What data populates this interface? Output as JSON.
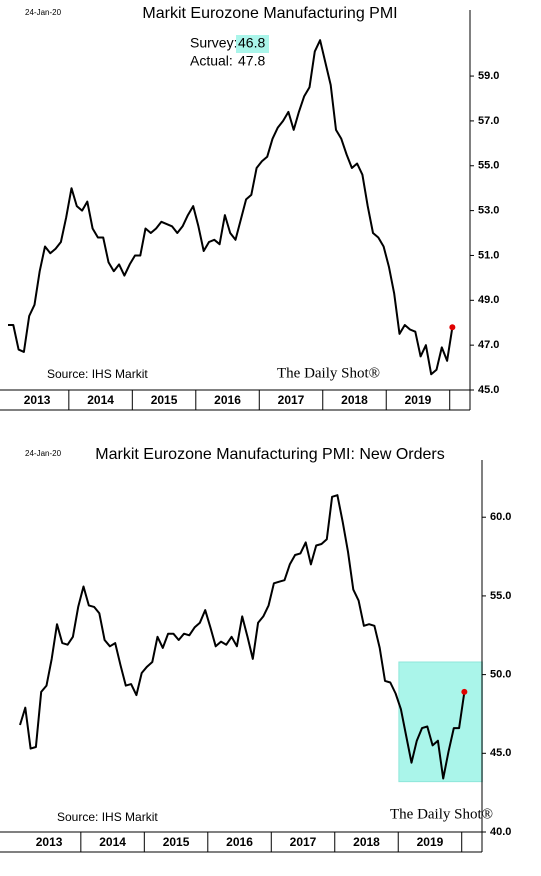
{
  "chart_data": [
    {
      "type": "line",
      "date": "24-Jan-20",
      "title": "Markit Eurozone Manufacturing PMI",
      "survey_label": "Survey:",
      "survey": 46.8,
      "actual_label": "Actual:",
      "actual": 47.8,
      "source": "Source: IHS Markit",
      "brand": "The Daily Shot®",
      "categories": [
        null,
        null,
        null,
        null,
        null,
        null,
        "2013",
        null,
        null,
        null,
        null,
        null,
        null,
        null,
        null,
        null,
        null,
        null,
        "2014",
        null,
        null,
        null,
        null,
        null,
        null,
        null,
        null,
        null,
        null,
        null,
        "2015",
        null,
        null,
        null,
        null,
        null,
        null,
        null,
        null,
        null,
        null,
        null,
        "2016",
        null,
        null,
        null,
        null,
        null,
        null,
        null,
        null,
        null,
        null,
        null,
        "2017",
        null,
        null,
        null,
        null,
        null,
        null,
        null,
        null,
        null,
        null,
        null,
        "2018",
        null,
        null,
        null,
        null,
        null,
        null,
        null,
        null,
        null,
        null,
        null,
        "2019",
        null,
        null,
        null,
        null,
        null,
        null
      ],
      "series": [
        {
          "color": "#000000",
          "values": [
            47.9,
            47.9,
            46.8,
            46.7,
            48.3,
            48.8,
            50.3,
            51.4,
            51.1,
            51.3,
            51.6,
            52.7,
            54.0,
            53.2,
            53.0,
            53.4,
            52.2,
            51.8,
            51.8,
            50.7,
            50.3,
            50.6,
            50.1,
            50.6,
            51.0,
            51.0,
            52.2,
            52.0,
            52.2,
            52.5,
            52.4,
            52.3,
            52.0,
            52.3,
            52.8,
            53.2,
            52.3,
            51.2,
            51.6,
            51.7,
            51.5,
            52.8,
            52.0,
            51.7,
            52.6,
            53.5,
            53.7,
            54.9,
            55.2,
            55.4,
            56.2,
            56.7,
            57.0,
            57.4,
            56.6,
            57.4,
            58.1,
            58.5,
            60.1,
            60.6,
            59.6,
            58.6,
            56.6,
            56.2,
            55.5,
            54.9,
            55.1,
            54.6,
            53.2,
            52.0,
            51.8,
            51.4,
            50.5,
            49.3,
            47.5,
            47.9,
            47.7,
            47.6,
            46.5,
            47.0,
            45.7,
            45.9,
            46.9,
            46.3,
            47.8
          ]
        }
      ],
      "last_point_color": "#e00000",
      "ylim": [
        45,
        61.5
      ],
      "yticks": [
        {
          "value": 45,
          "label": "45.0"
        },
        {
          "value": 47,
          "label": "47.0"
        },
        {
          "value": 49,
          "label": "49.0"
        },
        {
          "value": 51,
          "label": "51.0"
        },
        {
          "value": 53,
          "label": "53.0"
        },
        {
          "value": 55,
          "label": "55.0"
        },
        {
          "value": 57,
          "label": "57.0"
        },
        {
          "value": 59,
          "label": "59.0"
        }
      ]
    },
    {
      "type": "line",
      "date": "24-Jan-20",
      "title": "Markit Eurozone Manufacturing PMI: New Orders",
      "source": "Source: IHS Markit",
      "brand": "The Daily Shot®",
      "categories": [
        null,
        null,
        null,
        null,
        null,
        null,
        "2013",
        null,
        null,
        null,
        null,
        null,
        null,
        null,
        null,
        null,
        null,
        null,
        "2014",
        null,
        null,
        null,
        null,
        null,
        null,
        null,
        null,
        null,
        null,
        null,
        "2015",
        null,
        null,
        null,
        null,
        null,
        null,
        null,
        null,
        null,
        null,
        null,
        "2016",
        null,
        null,
        null,
        null,
        null,
        null,
        null,
        null,
        null,
        null,
        null,
        "2017",
        null,
        null,
        null,
        null,
        null,
        null,
        null,
        null,
        null,
        null,
        null,
        "2018",
        null,
        null,
        null,
        null,
        null,
        null,
        null,
        null,
        null,
        null,
        null,
        "2019",
        null,
        null,
        null,
        null,
        null,
        null
      ],
      "series": [
        {
          "color": "#000000",
          "values": [
            46.8,
            47.9,
            45.3,
            45.4,
            48.9,
            49.3,
            51.0,
            53.2,
            52.0,
            51.9,
            52.4,
            54.3,
            55.6,
            54.4,
            54.3,
            53.9,
            52.2,
            51.8,
            52.0,
            50.6,
            49.3,
            49.4,
            48.7,
            50.1,
            50.5,
            50.8,
            52.4,
            51.7,
            52.6,
            52.6,
            52.2,
            52.6,
            52.5,
            53.0,
            53.3,
            54.1,
            53.0,
            51.8,
            52.1,
            51.9,
            52.4,
            51.8,
            53.7,
            52.4,
            51.0,
            53.3,
            53.7,
            54.4,
            55.8,
            55.9,
            56.0,
            57.0,
            57.6,
            57.7,
            58.4,
            57.0,
            58.2,
            58.3,
            58.6,
            61.3,
            61.4,
            59.7,
            57.8,
            55.4,
            54.7,
            53.1,
            53.2,
            53.1,
            51.7,
            49.6,
            49.5,
            48.8,
            47.8,
            46.1,
            44.4,
            45.8,
            46.6,
            46.7,
            45.5,
            45.8,
            43.4,
            45.1,
            46.6,
            46.6,
            48.9
          ]
        }
      ],
      "last_point_color": "#e00000",
      "highlight": {
        "color": "#aaf5ea",
        "ylim": [
          43.2,
          50.8
        ]
      },
      "ylim": [
        40,
        63
      ],
      "yticks": [
        {
          "value": 40,
          "label": "40.0"
        },
        {
          "value": 45,
          "label": "45.0"
        },
        {
          "value": 50,
          "label": "50.0"
        },
        {
          "value": 55,
          "label": "55.0"
        },
        {
          "value": 60,
          "label": "60.0"
        }
      ]
    }
  ]
}
